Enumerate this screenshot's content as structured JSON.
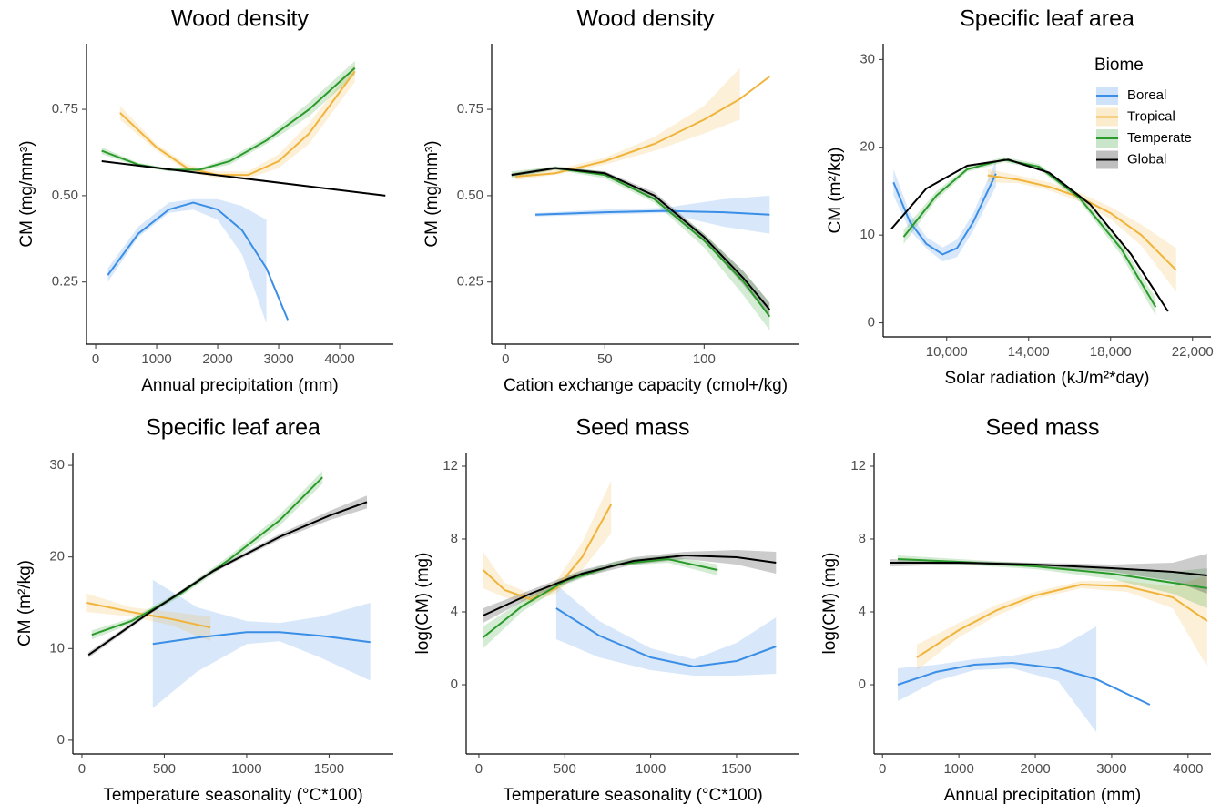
{
  "chart_data": [
    {
      "type": "line",
      "title": "Wood density",
      "x_label": "Annual precipitation (mm)",
      "y_label": "CM (mg/mm³)",
      "xlim": [
        -150,
        4880
      ],
      "ylim": [
        0.07,
        0.94
      ],
      "xticks": [
        0,
        1000,
        2000,
        3000,
        4000
      ],
      "yticks": [
        0.25,
        {
          "value": 0.5,
          "label": "0.50"
        },
        0.75
      ],
      "series": [
        {
          "name": "Boreal",
          "color": "#3a8ee6",
          "x": [
            200,
            700,
            1200,
            1600,
            2000,
            2400,
            2800,
            3150
          ],
          "values": [
            0.27,
            0.39,
            0.46,
            0.48,
            0.46,
            0.4,
            0.29,
            0.14
          ],
          "lower": [
            0.25,
            0.38,
            0.45,
            0.46,
            0.43,
            0.33,
            0.13,
            null
          ],
          "upper": [
            0.29,
            0.41,
            0.48,
            0.49,
            0.49,
            0.47,
            0.43,
            null
          ]
        },
        {
          "name": "Tropical",
          "color": "#f0b43c",
          "x": [
            400,
            1000,
            1500,
            2000,
            2500,
            3000,
            3500,
            4250
          ],
          "values": [
            0.74,
            0.64,
            0.58,
            0.56,
            0.56,
            0.6,
            0.68,
            0.86
          ],
          "lower": [
            0.72,
            0.63,
            0.57,
            0.55,
            0.55,
            0.58,
            0.65,
            0.83
          ],
          "upper": [
            0.76,
            0.65,
            0.59,
            0.57,
            0.57,
            0.62,
            0.71,
            0.88
          ]
        },
        {
          "name": "Temperate",
          "color": "#2a9a2a",
          "x": [
            100,
            700,
            1200,
            1700,
            2200,
            2800,
            3500,
            4250
          ],
          "values": [
            0.63,
            0.59,
            0.575,
            0.575,
            0.6,
            0.66,
            0.75,
            0.87
          ],
          "lower": [
            0.62,
            0.585,
            0.57,
            0.57,
            0.59,
            0.65,
            0.73,
            0.85
          ],
          "upper": [
            0.64,
            0.595,
            0.58,
            0.58,
            0.61,
            0.67,
            0.77,
            0.89
          ]
        },
        {
          "name": "Global",
          "color": "#000000",
          "x": [
            100,
            4750
          ],
          "values": [
            0.6,
            0.5
          ]
        }
      ]
    },
    {
      "type": "line",
      "title": "Wood density",
      "x_label": "Cation exchange capacity (cmol+/kg)",
      "y_label": "CM (mg/mm³)",
      "xlim": [
        -7,
        148
      ],
      "ylim": [
        0.07,
        0.94
      ],
      "xticks": [
        0,
        50,
        100
      ],
      "yticks": [
        0.25,
        {
          "value": 0.5,
          "label": "0.50"
        },
        0.75
      ],
      "series": [
        {
          "name": "Boreal",
          "color": "#3a8ee6",
          "x": [
            15,
            50,
            80,
            110,
            133
          ],
          "values": [
            0.445,
            0.452,
            0.456,
            0.452,
            0.445
          ],
          "lower": [
            0.44,
            0.445,
            0.45,
            0.41,
            0.39
          ],
          "upper": [
            0.45,
            0.46,
            0.465,
            0.49,
            0.5
          ]
        },
        {
          "name": "Tropical",
          "color": "#f0b43c",
          "x": [
            5,
            25,
            50,
            75,
            100,
            118,
            133
          ],
          "values": [
            0.555,
            0.565,
            0.6,
            0.65,
            0.72,
            0.78,
            0.845
          ],
          "lower": [
            0.545,
            0.56,
            0.59,
            0.63,
            0.68,
            0.72,
            null
          ],
          "upper": [
            0.565,
            0.575,
            0.61,
            0.67,
            0.76,
            0.87,
            null
          ]
        },
        {
          "name": "Temperate",
          "color": "#2a9a2a",
          "x": [
            3,
            25,
            50,
            75,
            100,
            120,
            133
          ],
          "values": [
            0.56,
            0.58,
            0.56,
            0.49,
            0.37,
            0.25,
            0.15
          ],
          "lower": [
            0.55,
            0.575,
            0.55,
            0.48,
            0.35,
            0.21,
            0.11
          ],
          "upper": [
            0.57,
            0.585,
            0.57,
            0.5,
            0.39,
            0.28,
            0.19
          ]
        },
        {
          "name": "Global",
          "color": "#000000",
          "x": [
            3,
            25,
            50,
            75,
            100,
            120,
            133
          ],
          "values": [
            0.56,
            0.58,
            0.565,
            0.5,
            0.38,
            0.26,
            0.17
          ],
          "lower": [
            0.555,
            0.575,
            0.56,
            0.49,
            0.37,
            0.24,
            0.15
          ],
          "upper": [
            0.565,
            0.585,
            0.57,
            0.51,
            0.39,
            0.28,
            0.19
          ]
        }
      ]
    },
    {
      "type": "line",
      "title": "Specific leaf area",
      "x_label": "Solar radiation (kJ/m²*day)",
      "y_label": "CM (m²/kg)",
      "xlim": [
        6900,
        22900
      ],
      "ylim": [
        -1.6,
        31.8
      ],
      "xticks": [
        {
          "value": 10000,
          "label": "10,000"
        },
        {
          "value": 14000,
          "label": "14,000"
        },
        {
          "value": 18000,
          "label": "18,000"
        },
        {
          "value": 22000,
          "label": "22,000"
        }
      ],
      "yticks": [
        0,
        10,
        20,
        30
      ],
      "legend": "top-right",
      "legend_title": "Biome",
      "series": [
        {
          "name": "Boreal",
          "color": "#3a8ee6",
          "x": [
            7400,
            8200,
            9000,
            9800,
            10500,
            11300,
            12400
          ],
          "values": [
            16,
            11.5,
            9,
            7.8,
            8.5,
            11.5,
            17
          ],
          "lower": [
            14.5,
            10.5,
            8.5,
            7,
            7.5,
            10.5,
            15.5
          ],
          "upper": [
            17.5,
            12.5,
            9.8,
            8.6,
            9.5,
            12.5,
            18.5
          ]
        },
        {
          "name": "Tropical",
          "color": "#f0b43c",
          "x": [
            12000,
            13500,
            15000,
            16500,
            18000,
            19500,
            21200
          ],
          "values": [
            16.8,
            16.3,
            15.5,
            14.3,
            12.5,
            10,
            6
          ],
          "lower": [
            16,
            15.9,
            15.1,
            13.8,
            11.8,
            8.8,
            3.5
          ],
          "upper": [
            17.5,
            16.8,
            16,
            14.8,
            13.2,
            11.2,
            8.5
          ]
        },
        {
          "name": "Temperate",
          "color": "#2a9a2a",
          "x": [
            7900,
            9500,
            11000,
            12800,
            14500,
            16500,
            18500,
            20200
          ],
          "values": [
            9.8,
            14.5,
            17.5,
            18.6,
            17.8,
            14.2,
            8.5,
            1.8
          ],
          "lower": [
            9,
            14,
            17.2,
            18.3,
            17.5,
            13.8,
            7.8,
            0.8
          ],
          "upper": [
            10.6,
            15,
            17.8,
            18.9,
            18.1,
            14.6,
            9.2,
            2.8
          ]
        },
        {
          "name": "Global",
          "color": "#000000",
          "x": [
            7300,
            9000,
            11000,
            13000,
            15000,
            17000,
            19000,
            20800
          ],
          "values": [
            10.7,
            15.3,
            17.9,
            18.6,
            17.1,
            13.5,
            7.8,
            1.3
          ]
        }
      ]
    },
    {
      "type": "line",
      "title": "Specific leaf area",
      "x_label": "Temperature seasonality (°C*100)",
      "y_label": "CM (m²/kg)",
      "xlim": [
        -55,
        1890
      ],
      "ylim": [
        -1.5,
        31.4
      ],
      "xticks": [
        0,
        500,
        1000,
        1500
      ],
      "yticks": [
        0,
        10,
        20,
        30
      ],
      "series": [
        {
          "name": "Boreal",
          "color": "#3a8ee6",
          "x": [
            430,
            700,
            1000,
            1200,
            1450,
            1750
          ],
          "values": [
            10.5,
            11.2,
            11.8,
            11.8,
            11.4,
            10.7
          ],
          "lower": [
            3.5,
            7.5,
            10.5,
            10.8,
            9,
            6.5
          ],
          "upper": [
            17.5,
            14.5,
            13,
            12.8,
            13.5,
            15
          ]
        },
        {
          "name": "Tropical",
          "color": "#f0b43c",
          "x": [
            30,
            300,
            550,
            780
          ],
          "values": [
            15,
            14,
            13.2,
            12.3
          ],
          "lower": [
            14,
            13.5,
            12.5,
            10.8
          ],
          "upper": [
            16,
            14.5,
            14,
            13.5
          ]
        },
        {
          "name": "Temperate",
          "color": "#2a9a2a",
          "x": [
            60,
            300,
            600,
            900,
            1200,
            1460
          ],
          "values": [
            11.5,
            13,
            16,
            19.8,
            24,
            28.7
          ],
          "lower": [
            11,
            12.7,
            15.7,
            19.4,
            23.4,
            28
          ],
          "upper": [
            12,
            13.3,
            16.3,
            20.2,
            24.6,
            29.4
          ]
        },
        {
          "name": "Global",
          "color": "#000000",
          "x": [
            40,
            400,
            800,
            1200,
            1500,
            1730
          ],
          "values": [
            9.3,
            13.8,
            18.5,
            22.2,
            24.5,
            26
          ],
          "lower": [
            9,
            13.6,
            18.3,
            21.9,
            24,
            25.3
          ],
          "upper": [
            9.6,
            14,
            18.7,
            22.5,
            25,
            26.7
          ]
        }
      ]
    },
    {
      "type": "line",
      "title": "Seed mass",
      "x_label": "Temperature seasonality (°C*100)",
      "y_label": "log(CM) (mg)",
      "xlim": [
        -74,
        1866
      ],
      "ylim": [
        -3.8,
        12.75
      ],
      "xticks": [
        0,
        500,
        1000,
        1500
      ],
      "yticks": [
        0,
        4,
        8,
        12
      ],
      "series": [
        {
          "name": "Boreal",
          "color": "#3a8ee6",
          "x": [
            450,
            700,
            1000,
            1250,
            1500,
            1730
          ],
          "values": [
            4.2,
            2.7,
            1.5,
            1.0,
            1.3,
            2.1
          ],
          "lower": [
            2.5,
            1.5,
            0.8,
            0.5,
            0.5,
            0.6
          ],
          "upper": [
            5.5,
            3.5,
            2.0,
            1.4,
            2.3,
            3.7
          ]
        },
        {
          "name": "Tropical",
          "color": "#f0b43c",
          "x": [
            25,
            150,
            300,
            450,
            600,
            770
          ],
          "values": [
            6.3,
            5.2,
            4.7,
            5.3,
            7.0,
            9.9
          ],
          "lower": [
            5.3,
            4.8,
            4.5,
            5.0,
            6.3,
            8.3
          ],
          "upper": [
            7.3,
            5.6,
            5.0,
            5.7,
            7.8,
            11.2
          ]
        },
        {
          "name": "Temperate",
          "color": "#2a9a2a",
          "x": [
            25,
            250,
            500,
            800,
            1100,
            1390
          ],
          "values": [
            2.6,
            4.3,
            5.7,
            6.6,
            6.9,
            6.3
          ],
          "lower": [
            2.0,
            4.0,
            5.5,
            6.5,
            6.7,
            6.0
          ],
          "upper": [
            3.2,
            4.6,
            5.9,
            6.8,
            7.1,
            6.6
          ]
        },
        {
          "name": "Global",
          "color": "#000000",
          "x": [
            25,
            300,
            600,
            900,
            1200,
            1500,
            1730
          ],
          "values": [
            3.8,
            5.0,
            6.1,
            6.8,
            7.1,
            7.0,
            6.7
          ],
          "lower": [
            3.4,
            4.8,
            5.9,
            6.6,
            6.9,
            6.6,
            6.1
          ],
          "upper": [
            4.2,
            5.2,
            6.3,
            7.0,
            7.3,
            7.4,
            7.3
          ]
        }
      ]
    },
    {
      "type": "line",
      "title": "Seed mass",
      "x_label": "Annual precipitation (mm)",
      "y_label": "log(CM) (mg)",
      "xlim": [
        -110,
        4300
      ],
      "ylim": [
        -3.8,
        12.75
      ],
      "xticks": [
        0,
        1000,
        2000,
        3000,
        4000
      ],
      "yticks": [
        0,
        4,
        8,
        12
      ],
      "series": [
        {
          "name": "Boreal",
          "color": "#3a8ee6",
          "x": [
            200,
            700,
            1200,
            1700,
            2300,
            2800,
            3500
          ],
          "values": [
            0,
            0.7,
            1.1,
            1.2,
            0.9,
            0.3,
            -1.1
          ],
          "lower": [
            -0.9,
            0.2,
            0.8,
            0.9,
            0.2,
            -2.6,
            null
          ],
          "upper": [
            0.9,
            1.1,
            1.4,
            1.6,
            2.0,
            3.2,
            null
          ]
        },
        {
          "name": "Tropical",
          "color": "#f0b43c",
          "x": [
            450,
            1000,
            1500,
            2000,
            2600,
            3200,
            3800,
            4250
          ],
          "values": [
            1.5,
            3.0,
            4.1,
            4.9,
            5.5,
            5.4,
            4.8,
            3.5
          ],
          "lower": [
            0.8,
            2.6,
            3.8,
            4.7,
            5.3,
            5.1,
            4.2,
            1.0
          ],
          "upper": [
            2.2,
            3.4,
            4.4,
            5.1,
            5.7,
            5.7,
            5.4,
            6.0
          ]
        },
        {
          "name": "Temperate",
          "color": "#2a9a2a",
          "x": [
            200,
            1000,
            2000,
            3000,
            3800,
            4250
          ],
          "values": [
            6.9,
            6.75,
            6.5,
            6.1,
            5.6,
            5.3
          ],
          "lower": [
            6.7,
            6.6,
            6.35,
            5.8,
            5.0,
            4.2
          ],
          "upper": [
            7.1,
            6.9,
            6.65,
            6.4,
            6.2,
            6.4
          ]
        },
        {
          "name": "Global",
          "color": "#000000",
          "x": [
            100,
            1000,
            2000,
            3000,
            3800,
            4250
          ],
          "values": [
            6.7,
            6.7,
            6.6,
            6.4,
            6.2,
            6.0
          ],
          "lower": [
            6.5,
            6.6,
            6.5,
            6.2,
            5.7,
            5.0
          ],
          "upper": [
            6.9,
            6.8,
            6.7,
            6.6,
            6.7,
            7.2
          ]
        }
      ]
    }
  ]
}
